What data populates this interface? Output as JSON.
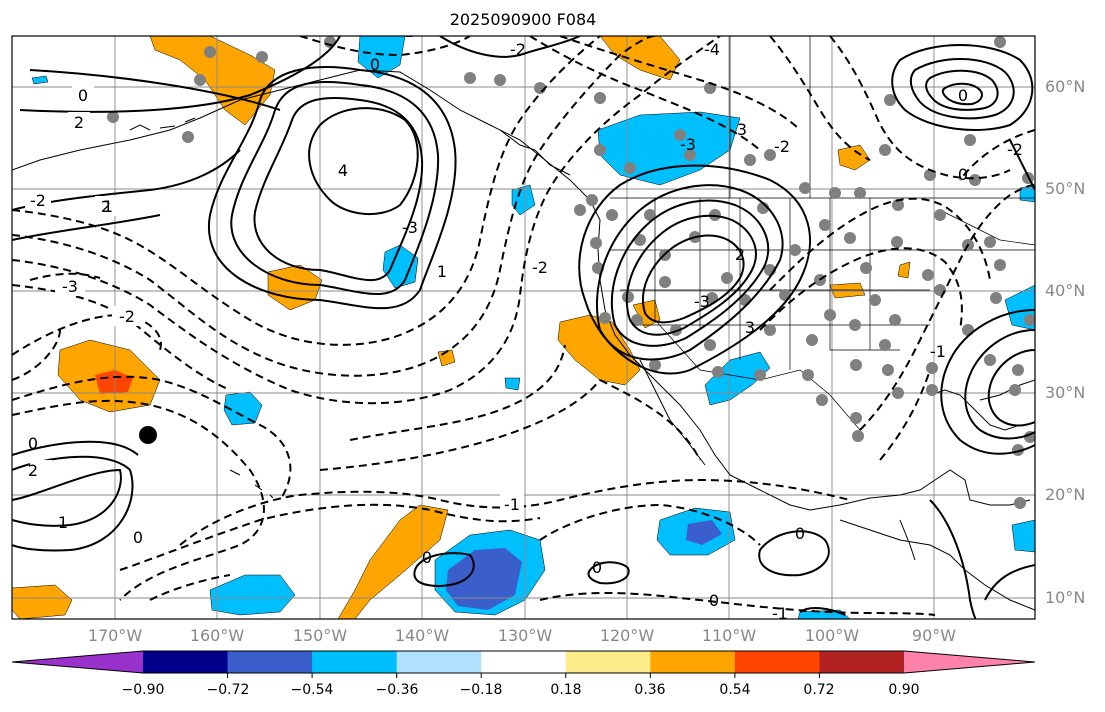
{
  "title": "2025090900 F084",
  "lat_labels": [
    "60°N",
    "50°N",
    "40°N",
    "30°N",
    "20°N",
    "10°N"
  ],
  "lon_labels": [
    "170°W",
    "160°W",
    "150°W",
    "140°W",
    "130°W",
    "120°W",
    "110°W",
    "100°W",
    "90°W"
  ],
  "colorbar": {
    "colors": [
      "#9932cc",
      "#00008b",
      "#3a5fcd",
      "#00bfff",
      "#b0e2ff",
      "#ffffff",
      "#ffec8b",
      "#ffa500",
      "#ff4500",
      "#b22222",
      "#ff82ab"
    ],
    "tick_labels": [
      "−0.90",
      "−0.72",
      "−0.54",
      "−0.36",
      "−0.18",
      "0.18",
      "0.36",
      "0.54",
      "0.72",
      "0.90"
    ]
  },
  "contour_labels": [
    "0",
    "2",
    "-2",
    "-3",
    "2",
    "1",
    "-1",
    "-2",
    "0",
    "2",
    "-3",
    "3",
    "0",
    "1",
    "-1",
    "-2",
    "-2",
    "-3",
    "-2",
    "0",
    "-3",
    "3",
    "2",
    "0",
    "0",
    "0",
    "0",
    "-1",
    "-1",
    "0",
    "-1",
    "1",
    "0",
    "4",
    "-4",
    "-2"
  ]
}
